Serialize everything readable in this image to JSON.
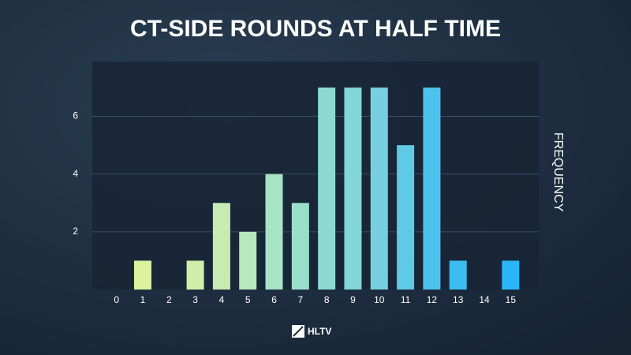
{
  "chart_data": {
    "type": "bar",
    "title": "CT-SIDE ROUNDS AT HALF TIME",
    "y_label": "FREQUENCY",
    "logo": "HLTV",
    "categories": [
      "0",
      "1",
      "2",
      "3",
      "4",
      "5",
      "6",
      "7",
      "8",
      "9",
      "10",
      "11",
      "12",
      "13",
      "14",
      "15"
    ],
    "values": [
      0,
      1,
      0,
      1,
      3,
      2,
      4,
      3,
      7,
      7,
      7,
      5,
      7,
      1,
      0,
      1
    ],
    "colors": [
      "#e0f49c",
      "#dcf29e",
      "#d6f0a4",
      "#d0eeaa",
      "#c6ecb2",
      "#b8e7bb",
      "#a8e3c4",
      "#9bdfca",
      "#8cd9d2",
      "#82d5d8",
      "#76d0df",
      "#60c9e6",
      "#4bc2ec",
      "#3bbdf1",
      "#31baf5",
      "#29b7f9"
    ],
    "ylim": [
      0,
      7.9
    ],
    "yticks": [
      2,
      4,
      6
    ],
    "grid": true
  }
}
